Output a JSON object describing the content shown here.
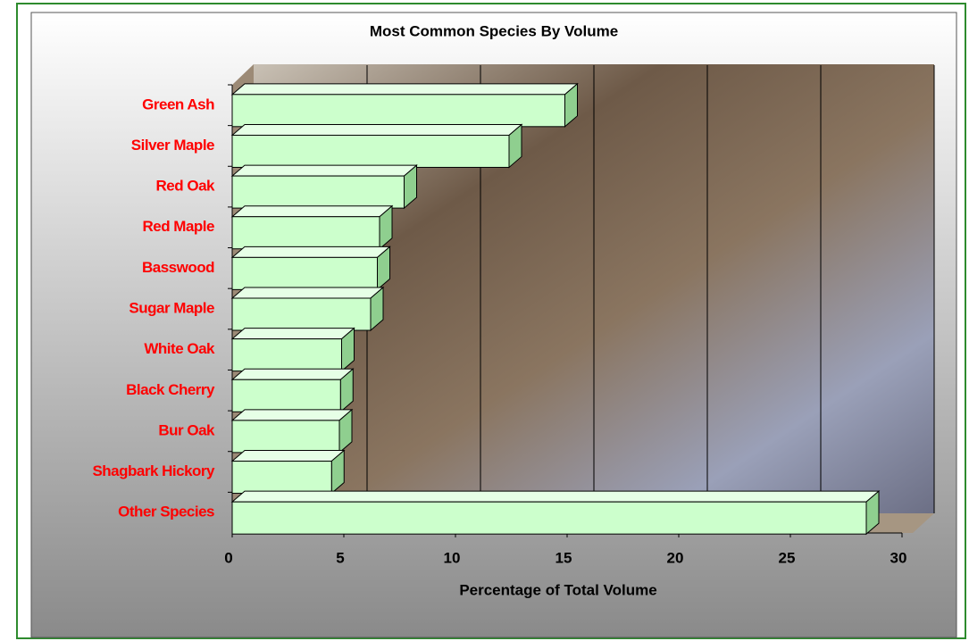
{
  "chart_data": {
    "type": "bar",
    "orientation": "horizontal",
    "title": "Most Common Species By Volume",
    "xlabel": "Percentage of Total Volume",
    "categories": [
      "Green Ash",
      "Silver Maple",
      "Red Oak",
      "Red Maple",
      "Basswood",
      "Sugar Maple",
      "White Oak",
      "Black Cherry",
      "Bur Oak",
      "Shagbark Hickory",
      "Other Species"
    ],
    "values": [
      14.9,
      12.4,
      7.7,
      6.6,
      6.5,
      6.2,
      4.9,
      4.85,
      4.8,
      4.45,
      28.4
    ],
    "color": "#ccffcc",
    "label_color": "#ff0000",
    "xlim": [
      0,
      30
    ],
    "xticks": [
      0,
      5,
      10,
      15,
      20,
      25,
      30
    ],
    "grid": true
  }
}
